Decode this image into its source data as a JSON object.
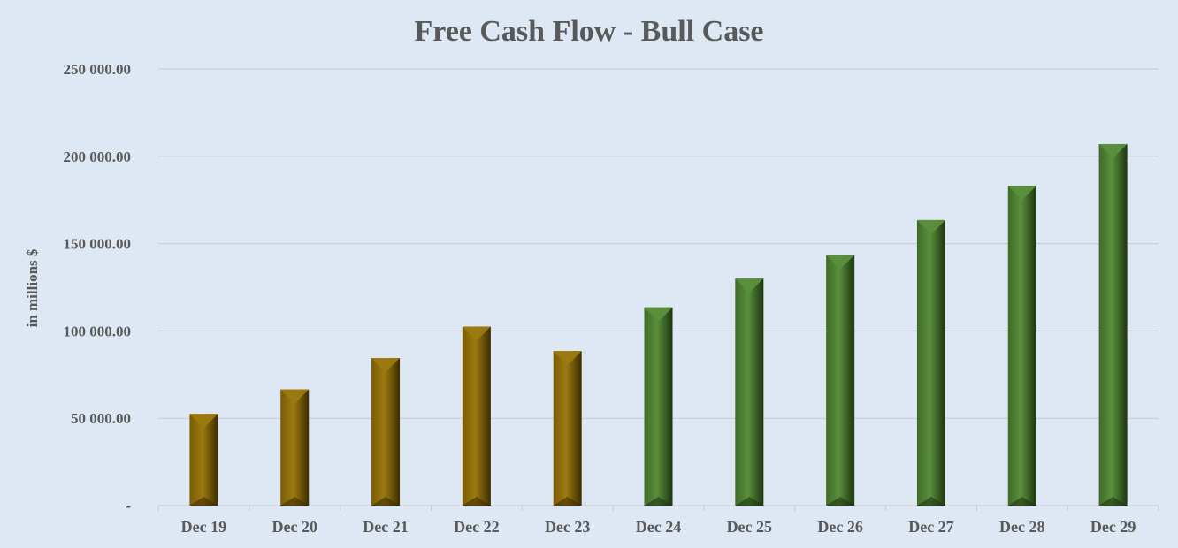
{
  "chart_data": {
    "type": "bar",
    "title": "Free Cash Flow - Bull Case",
    "ylabel": "in millions $",
    "xlabel": "",
    "ylim": [
      0,
      250000
    ],
    "yticks": [
      {
        "value": 0,
        "label": "-"
      },
      {
        "value": 50000,
        "label": "50 000.00"
      },
      {
        "value": 100000,
        "label": "100 000.00"
      },
      {
        "value": 150000,
        "label": "150 000.00"
      },
      {
        "value": 200000,
        "label": "200 000.00"
      },
      {
        "value": 250000,
        "label": "250 000.00"
      }
    ],
    "categories": [
      "Dec 19",
      "Dec 20",
      "Dec 21",
      "Dec 22",
      "Dec 23",
      "Dec 24",
      "Dec 25",
      "Dec 26",
      "Dec 27",
      "Dec 28",
      "Dec 29"
    ],
    "values": [
      52500,
      66500,
      84500,
      102500,
      88500,
      113500,
      130000,
      143500,
      163500,
      183000,
      207000
    ],
    "bar_kind": [
      "historical",
      "historical",
      "historical",
      "historical",
      "historical",
      "projected",
      "projected",
      "projected",
      "projected",
      "projected",
      "projected"
    ],
    "grid": true,
    "legend": "none"
  },
  "colors": {
    "background": "#dde8f4",
    "grid": "#c9c9c9",
    "text": "#595959",
    "historical_light": "#9c7a10",
    "historical_mid": "#7a5c06",
    "historical_dark": "#3d2c00",
    "projected_light": "#5b8f3c",
    "projected_mid": "#3f6b27",
    "projected_dark": "#1c3510"
  }
}
